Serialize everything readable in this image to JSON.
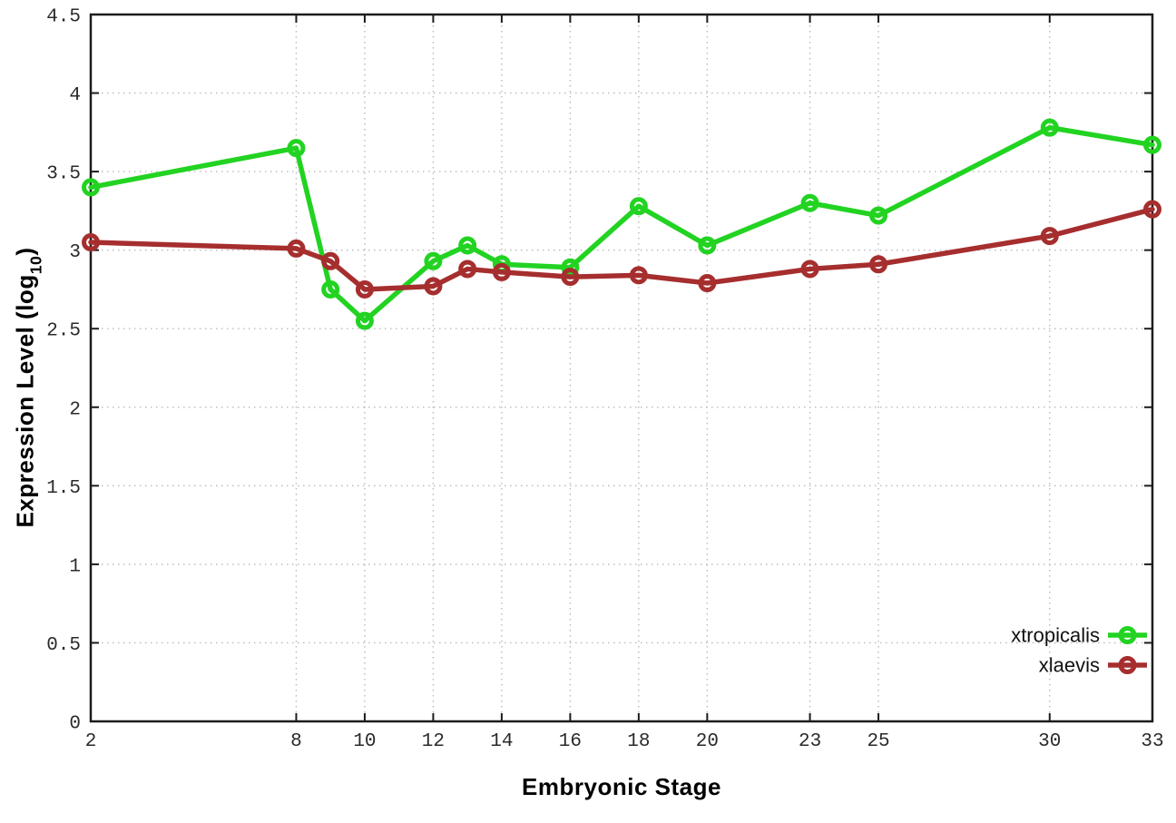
{
  "chart_data": {
    "type": "line",
    "title": "",
    "xlabel": "Embryonic Stage",
    "ylabel": "Expression Level (log10)",
    "ylabel_parts": {
      "prefix": "Expression Level (log",
      "sub": "10",
      "suffix": ")"
    },
    "x": [
      2,
      8,
      9,
      10,
      12,
      13,
      14,
      16,
      18,
      20,
      23,
      25,
      30,
      33
    ],
    "series": [
      {
        "name": "xtropicalis",
        "color": "#22d322",
        "marker": "open-circle",
        "values": [
          3.4,
          3.65,
          2.75,
          2.55,
          2.93,
          3.03,
          2.91,
          2.89,
          3.28,
          3.03,
          3.3,
          3.22,
          3.78,
          3.67
        ]
      },
      {
        "name": "xlaevis",
        "color": "#a62e2e",
        "marker": "open-circle",
        "values": [
          3.05,
          3.01,
          2.93,
          2.75,
          2.77,
          2.88,
          2.86,
          2.83,
          2.84,
          2.79,
          2.88,
          2.91,
          3.09,
          3.26
        ]
      }
    ],
    "xlim": [
      2,
      33
    ],
    "ylim": [
      0,
      4.5
    ],
    "x_ticks": [
      2,
      8,
      10,
      12,
      14,
      16,
      18,
      20,
      23,
      25,
      30,
      33
    ],
    "x_tick_labels": [
      "2",
      "8",
      "10",
      "12",
      "14",
      "16",
      "18",
      "20",
      "23",
      "25",
      "30",
      "33"
    ],
    "y_ticks": [
      0,
      0.5,
      1,
      1.5,
      2,
      2.5,
      3,
      3.5,
      4,
      4.5
    ],
    "y_tick_labels": [
      "0",
      "0.5",
      "1",
      "1.5",
      "2",
      "2.5",
      "3",
      "3.5",
      "4",
      "4.5"
    ],
    "grid": true,
    "legend_position": "bottom-right"
  },
  "colors": {
    "background": "#ffffff",
    "axis_border": "#1c1c1c",
    "grid": "#b9b9b9",
    "tick_text": "#2a2a2a",
    "legend_text": "#111111",
    "series_green": "#22d322",
    "series_red": "#a62e2e"
  }
}
